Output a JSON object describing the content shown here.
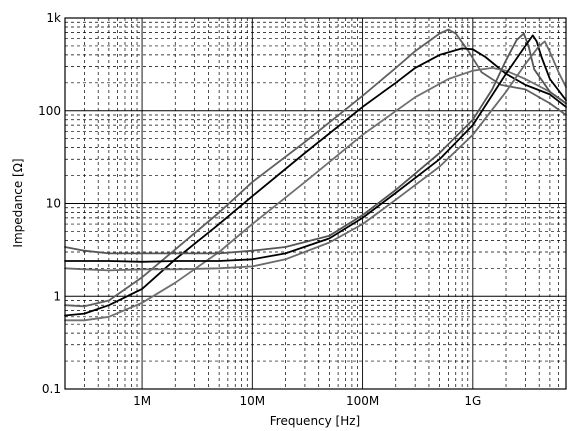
{
  "chart_data": {
    "type": "line",
    "title": "",
    "xlabel": "Frequency [Hz]",
    "ylabel": "Impedance [Ω]",
    "x_scale": "log",
    "y_scale": "log",
    "xlim": [
      200000,
      7000000000
    ],
    "ylim": [
      0.1,
      1000
    ],
    "grid": true,
    "x_ticks": [
      {
        "value": 1000000,
        "label": "1M"
      },
      {
        "value": 10000000,
        "label": "10M"
      },
      {
        "value": 100000000,
        "label": "100M"
      },
      {
        "value": 1000000000,
        "label": "1G"
      }
    ],
    "y_ticks": [
      {
        "value": 0.1,
        "label": "0.1"
      },
      {
        "value": 1,
        "label": "1"
      },
      {
        "value": 10,
        "label": "10"
      },
      {
        "value": 100,
        "label": "100"
      },
      {
        "value": 1000,
        "label": "1k"
      }
    ],
    "series": [
      {
        "color": "#606060",
        "x": [
          200000,
          300000,
          500000,
          1000000,
          2000000,
          5000000,
          10000000,
          30000000,
          100000000,
          200000000,
          300000000,
          500000000,
          600000000,
          700000000,
          900000000,
          1200000000,
          1800000000,
          3000000000,
          5000000000,
          7000000000
        ],
        "y": [
          0.8,
          0.78,
          0.9,
          1.6,
          3.2,
          8,
          17,
          46,
          145,
          290,
          440,
          680,
          750,
          680,
          450,
          260,
          190,
          170,
          120,
          90
        ]
      },
      {
        "color": "#000000",
        "x": [
          200000,
          300000,
          500000,
          1000000,
          2000000,
          5000000,
          10000000,
          30000000,
          100000000,
          200000000,
          300000000,
          500000000,
          800000000,
          1000000000,
          1300000000,
          2000000000,
          3000000000,
          5000000000,
          7000000000
        ],
        "y": [
          0.62,
          0.65,
          0.8,
          1.2,
          2.5,
          6,
          12,
          35,
          110,
          200,
          290,
          400,
          470,
          460,
          380,
          250,
          190,
          150,
          110
        ]
      },
      {
        "color": "#707070",
        "x": [
          200000,
          300000,
          500000,
          1000000,
          2000000,
          5000000,
          10000000,
          30000000,
          100000000,
          300000000,
          600000000,
          1000000000,
          1500000000,
          2000000000,
          3000000000,
          5000000000,
          7000000000
        ],
        "y": [
          0.55,
          0.55,
          0.6,
          0.85,
          1.4,
          3,
          6,
          17,
          55,
          140,
          220,
          270,
          290,
          270,
          220,
          160,
          120
        ]
      },
      {
        "color": "#555555",
        "x": [
          200000,
          300000,
          500000,
          1000000,
          2000000,
          5000000,
          10000000,
          20000000,
          50000000,
          100000000,
          200000000,
          500000000,
          1000000000,
          1500000000,
          2000000000,
          2500000000,
          2900000000,
          3200000000,
          3600000000,
          5000000000,
          7000000000
        ],
        "y": [
          3.4,
          3.1,
          2.9,
          2.9,
          2.9,
          2.9,
          3.1,
          3.4,
          4.5,
          7.5,
          14,
          35,
          80,
          170,
          350,
          580,
          680,
          500,
          280,
          160,
          120
        ]
      },
      {
        "color": "#000000",
        "x": [
          200000,
          300000,
          500000,
          1000000,
          2000000,
          5000000,
          10000000,
          20000000,
          50000000,
          100000000,
          200000000,
          500000000,
          1000000000,
          2000000000,
          3000000000,
          3500000000,
          3800000000,
          4200000000,
          5000000000,
          7000000000
        ],
        "y": [
          2.4,
          2.4,
          2.4,
          2.35,
          2.4,
          2.4,
          2.5,
          2.9,
          4.2,
          7,
          13,
          30,
          70,
          250,
          500,
          650,
          560,
          380,
          220,
          130
        ]
      },
      {
        "color": "#6a6a6a",
        "x": [
          200000,
          300000,
          500000,
          1000000,
          2000000,
          5000000,
          10000000,
          20000000,
          50000000,
          100000000,
          200000000,
          500000000,
          1000000000,
          2000000000,
          3000000000,
          4000000000,
          4500000000,
          5000000000,
          6000000000,
          7000000000
        ],
        "y": [
          2.0,
          1.95,
          1.9,
          1.95,
          1.95,
          2.0,
          2.1,
          2.5,
          3.8,
          6,
          11,
          25,
          55,
          160,
          320,
          500,
          560,
          430,
          260,
          180
        ]
      }
    ]
  }
}
